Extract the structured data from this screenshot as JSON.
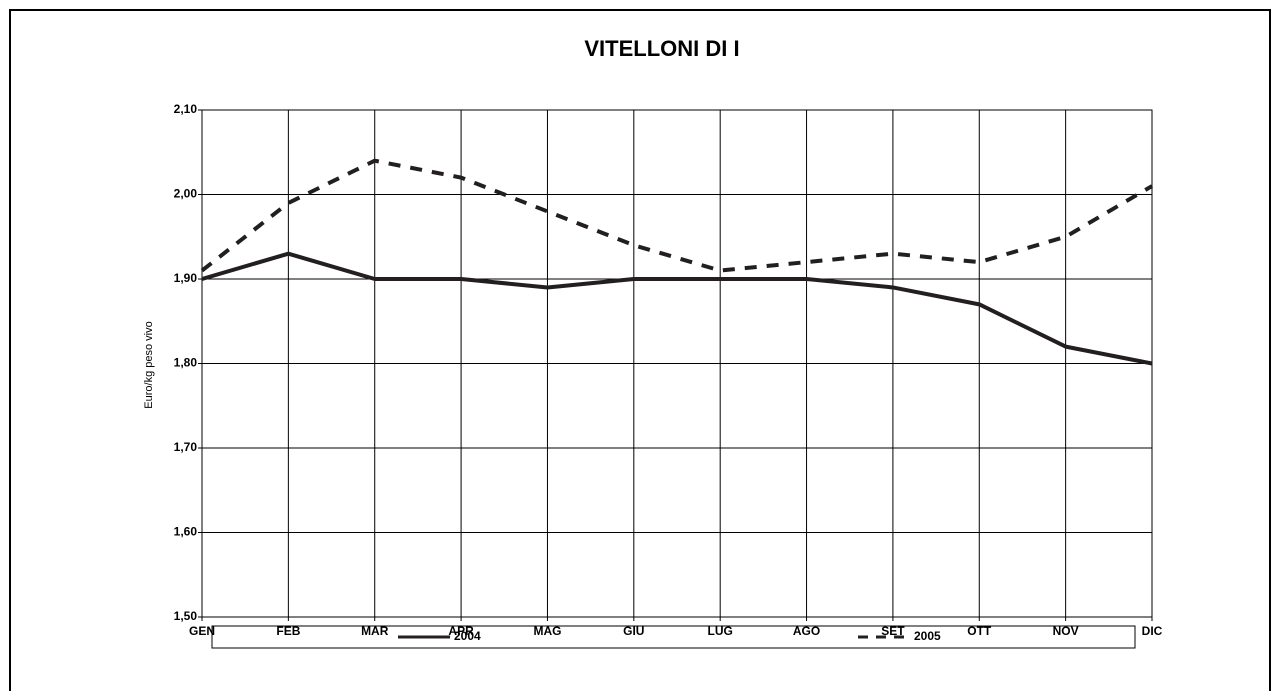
{
  "chart_data": {
    "type": "line",
    "title": "VITELLONI DI I",
    "y_label": "Euro/kg  peso vivo",
    "categories": [
      "GEN",
      "FEB",
      "MAR",
      "APR",
      "MAG",
      "GIU",
      "LUG",
      "AGO",
      "SET",
      "OTT",
      "NOV",
      "DIC"
    ],
    "series": [
      {
        "name": "2004",
        "color": "#231f20",
        "style": "solid",
        "values": [
          1.9,
          1.93,
          1.9,
          1.9,
          1.89,
          1.9,
          1.9,
          1.9,
          1.89,
          1.87,
          1.82,
          1.8
        ]
      },
      {
        "name": "2005",
        "color": "#231f20",
        "style": "dashed",
        "values": [
          1.91,
          1.99,
          2.04,
          2.02,
          1.98,
          1.94,
          1.91,
          1.92,
          1.93,
          1.92,
          1.95,
          2.01
        ]
      }
    ],
    "ylim": [
      1.5,
      2.1
    ],
    "yticks": [
      {
        "value": 1.5,
        "label": "1,50"
      },
      {
        "value": 1.6,
        "label": "1,60"
      },
      {
        "value": 1.7,
        "label": "1,70"
      },
      {
        "value": 1.8,
        "label": "1,80"
      },
      {
        "value": 1.9,
        "label": "1,90"
      },
      {
        "value": 2.0,
        "label": "2,00"
      },
      {
        "value": 2.1,
        "label": "2,10"
      }
    ],
    "grid": true,
    "legend": "bottom"
  }
}
